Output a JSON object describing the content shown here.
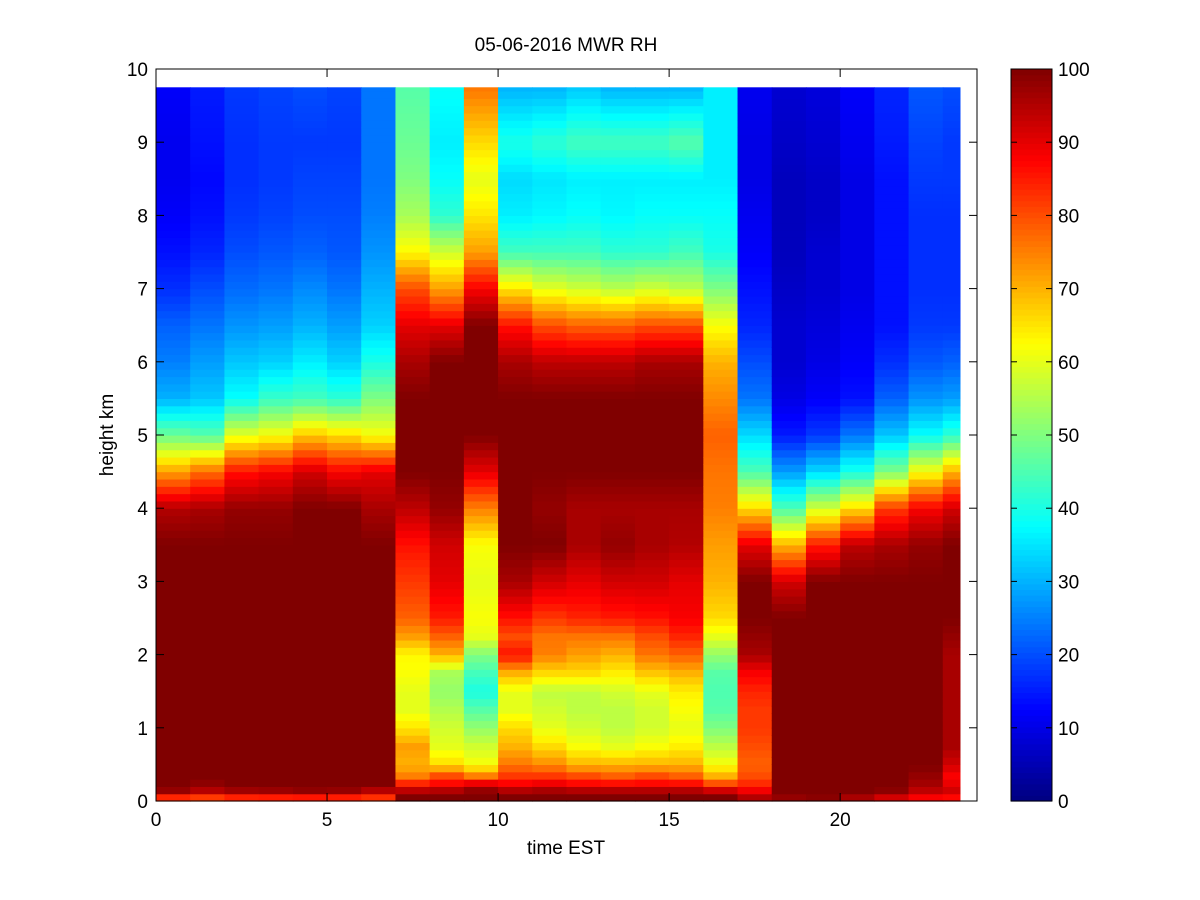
{
  "chart_data": {
    "type": "heatmap",
    "title": "05-06-2016 MWR RH",
    "xlabel": "time EST",
    "ylabel": "height km",
    "xlim": [
      0,
      24
    ],
    "ylim": [
      0,
      10
    ],
    "x_ticks": [
      0,
      5,
      10,
      15,
      20
    ],
    "y_ticks": [
      0,
      1,
      2,
      3,
      4,
      5,
      6,
      7,
      8,
      9,
      10
    ],
    "colorbar": {
      "colormap": "jet",
      "clim": [
        0,
        100
      ],
      "ticks": [
        0,
        10,
        20,
        30,
        40,
        50,
        60,
        70,
        80,
        90,
        100
      ]
    },
    "grid": false,
    "data_x_range": [
      0,
      23.5
    ],
    "data_y_range": [
      0,
      9.75
    ],
    "time_step_hours": 1,
    "height_knots_km": [
      0,
      0.1,
      0.2,
      0.35,
      0.5,
      0.75,
      1.0,
      1.25,
      1.5,
      1.75,
      2.0,
      2.25,
      2.5,
      3.0,
      3.5,
      4.0,
      4.5,
      5.0,
      5.5,
      6.0,
      6.5,
      7.0,
      7.5,
      8.0,
      8.5,
      9.0,
      9.75
    ],
    "rh_profiles_percent": [
      {
        "time": 0,
        "values": [
          72,
          96,
          100,
          100,
          100,
          100,
          100,
          100,
          100,
          100,
          100,
          100,
          100,
          100,
          100,
          95,
          72,
          48,
          30,
          25,
          22,
          17,
          14,
          12,
          11,
          11,
          12
        ]
      },
      {
        "time": 1,
        "values": [
          72,
          92,
          98,
          100,
          100,
          100,
          100,
          100,
          100,
          100,
          100,
          100,
          100,
          100,
          100,
          96,
          77,
          46,
          32,
          28,
          24,
          20,
          16,
          14,
          13,
          14,
          15
        ]
      },
      {
        "time": 2,
        "values": [
          75,
          94,
          100,
          100,
          100,
          100,
          100,
          100,
          100,
          100,
          100,
          100,
          100,
          100,
          100,
          98,
          86,
          60,
          38,
          32,
          27,
          23,
          20,
          18,
          17,
          17,
          18
        ]
      },
      {
        "time": 3,
        "values": [
          75,
          95,
          100,
          100,
          100,
          100,
          100,
          100,
          100,
          100,
          100,
          100,
          100,
          100,
          100,
          98,
          88,
          62,
          43,
          33,
          28,
          24,
          21,
          19,
          18,
          18,
          19
        ]
      },
      {
        "time": 4,
        "values": [
          74,
          97,
          100,
          100,
          100,
          100,
          100,
          100,
          100,
          100,
          100,
          100,
          100,
          100,
          100,
          100,
          92,
          68,
          44,
          36,
          30,
          26,
          22,
          20,
          19,
          18,
          20
        ]
      },
      {
        "time": 5,
        "values": [
          74,
          96,
          100,
          100,
          100,
          100,
          100,
          100,
          100,
          100,
          100,
          100,
          100,
          100,
          100,
          100,
          88,
          66,
          42,
          33,
          28,
          24,
          21,
          20,
          19,
          18,
          19
        ]
      },
      {
        "time": 6,
        "values": [
          76,
          90,
          100,
          100,
          100,
          100,
          100,
          100,
          100,
          100,
          100,
          100,
          100,
          100,
          100,
          96,
          90,
          62,
          50,
          40,
          33,
          30,
          27,
          25,
          24,
          24,
          24
        ]
      },
      {
        "time": 7,
        "values": [
          100,
          100,
          88,
          75,
          70,
          72,
          65,
          60,
          60,
          62,
          63,
          72,
          78,
          82,
          86,
          94,
          100,
          100,
          100,
          96,
          90,
          80,
          63,
          54,
          50,
          48,
          46
        ]
      },
      {
        "time": 8,
        "values": [
          100,
          100,
          90,
          80,
          66,
          60,
          58,
          55,
          52,
          54,
          70,
          78,
          85,
          90,
          92,
          98,
          100,
          100,
          100,
          100,
          90,
          72,
          58,
          42,
          38,
          36,
          38
        ]
      },
      {
        "time": 9,
        "values": [
          100,
          100,
          96,
          75,
          62,
          58,
          52,
          46,
          40,
          44,
          50,
          60,
          62,
          60,
          62,
          75,
          90,
          100,
          100,
          100,
          100,
          88,
          72,
          65,
          60,
          66,
          76
        ]
      },
      {
        "time": 10,
        "values": [
          100,
          100,
          90,
          82,
          76,
          70,
          66,
          60,
          60,
          70,
          86,
          80,
          86,
          96,
          100,
          100,
          100,
          100,
          100,
          96,
          86,
          65,
          44,
          36,
          34,
          40,
          30
        ]
      },
      {
        "time": 11,
        "values": [
          100,
          100,
          92,
          82,
          74,
          66,
          60,
          58,
          56,
          66,
          75,
          76,
          82,
          92,
          100,
          98,
          100,
          100,
          100,
          94,
          80,
          60,
          44,
          37,
          35,
          42,
          30
        ]
      },
      {
        "time": 12,
        "values": [
          100,
          100,
          90,
          80,
          70,
          62,
          58,
          56,
          56,
          66,
          72,
          76,
          84,
          90,
          96,
          96,
          100,
          100,
          100,
          94,
          78,
          58,
          44,
          38,
          36,
          44,
          32
        ]
      },
      {
        "time": 13,
        "values": [
          100,
          100,
          90,
          78,
          70,
          60,
          56,
          56,
          58,
          64,
          70,
          76,
          85,
          92,
          98,
          96,
          100,
          100,
          100,
          94,
          78,
          56,
          42,
          37,
          36,
          44,
          30
        ]
      },
      {
        "time": 14,
        "values": [
          100,
          100,
          90,
          80,
          70,
          62,
          58,
          58,
          60,
          68,
          76,
          80,
          86,
          92,
          96,
          96,
          100,
          100,
          100,
          96,
          80,
          58,
          42,
          38,
          36,
          44,
          30
        ]
      },
      {
        "time": 15,
        "values": [
          100,
          100,
          90,
          78,
          70,
          64,
          60,
          62,
          64,
          70,
          78,
          84,
          88,
          90,
          95,
          96,
          100,
          100,
          100,
          96,
          80,
          56,
          44,
          38,
          36,
          46,
          30
        ]
      },
      {
        "time": 16,
        "values": [
          100,
          100,
          84,
          70,
          62,
          56,
          50,
          46,
          45,
          46,
          52,
          60,
          66,
          70,
          72,
          75,
          76,
          78,
          74,
          70,
          62,
          50,
          40,
          38,
          36,
          36,
          36
        ]
      },
      {
        "time": 17,
        "values": [
          98,
          92,
          85,
          80,
          78,
          80,
          82,
          82,
          84,
          88,
          96,
          98,
          100,
          100,
          90,
          66,
          45,
          34,
          24,
          20,
          16,
          14,
          12,
          11,
          10,
          10,
          11
        ]
      },
      {
        "time": 18,
        "values": [
          96,
          100,
          100,
          100,
          100,
          100,
          100,
          100,
          100,
          100,
          100,
          100,
          100,
          92,
          70,
          45,
          28,
          15,
          10,
          8,
          8,
          7,
          6,
          6,
          6,
          7,
          8
        ]
      },
      {
        "time": 19,
        "values": [
          98,
          100,
          100,
          100,
          100,
          100,
          100,
          100,
          100,
          100,
          100,
          100,
          100,
          100,
          85,
          58,
          34,
          18,
          12,
          10,
          9,
          8,
          8,
          7,
          7,
          8,
          9
        ]
      },
      {
        "time": 20,
        "values": [
          92,
          100,
          100,
          100,
          100,
          100,
          100,
          100,
          100,
          100,
          100,
          100,
          100,
          100,
          94,
          66,
          40,
          24,
          14,
          12,
          11,
          10,
          10,
          10,
          10,
          11,
          12
        ]
      },
      {
        "time": 21,
        "values": [
          86,
          98,
          100,
          100,
          100,
          100,
          100,
          100,
          100,
          100,
          100,
          100,
          100,
          100,
          96,
          82,
          50,
          32,
          22,
          17,
          14,
          14,
          14,
          14,
          14,
          15,
          16
        ]
      },
      {
        "time": 22,
        "values": [
          84,
          92,
          96,
          98,
          100,
          100,
          100,
          100,
          100,
          100,
          100,
          100,
          100,
          100,
          98,
          88,
          62,
          38,
          27,
          21,
          18,
          17,
          17,
          17,
          18,
          19,
          21
        ]
      },
      {
        "time": 23,
        "values": [
          80,
          94,
          90,
          88,
          92,
          96,
          96,
          96,
          96,
          96,
          96,
          98,
          100,
          100,
          100,
          92,
          70,
          42,
          28,
          22,
          18,
          17,
          17,
          17,
          18,
          18,
          20
        ]
      }
    ]
  }
}
